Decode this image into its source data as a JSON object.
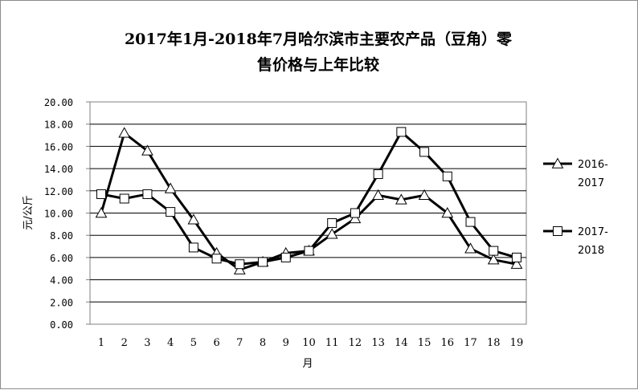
{
  "chart_data": {
    "type": "line",
    "title": "2017年1月-2018年7月哈尔滨市主要农产品（豆角）零",
    "title_line2": "售价格与上年比较",
    "xlabel": "月",
    "ylabel": "元/公斤",
    "x": [
      1,
      2,
      3,
      4,
      5,
      6,
      7,
      8,
      9,
      10,
      11,
      12,
      13,
      14,
      15,
      16,
      17,
      18,
      19
    ],
    "ylim": [
      0,
      20
    ],
    "yticks": [
      "0.00",
      "2.00",
      "4.00",
      "6.00",
      "8.00",
      "10.00",
      "12.00",
      "14.00",
      "16.00",
      "18.00",
      "20.00"
    ],
    "grid": true,
    "legend_position": "right",
    "series": [
      {
        "name": "2016-2017",
        "name_line1": "2016-",
        "name_line2": "2017",
        "marker": "triangle",
        "color": "#000000",
        "values": [
          10.0,
          17.2,
          15.6,
          12.2,
          9.4,
          6.4,
          4.9,
          5.6,
          6.4,
          6.6,
          8.1,
          9.5,
          11.6,
          11.2,
          11.6,
          10.0,
          6.8,
          5.8,
          5.4
        ]
      },
      {
        "name": "2017-2018",
        "name_line1": "2017-",
        "name_line2": "2018",
        "marker": "square",
        "color": "#000000",
        "values": [
          11.7,
          11.3,
          11.7,
          10.1,
          6.9,
          5.9,
          5.4,
          5.6,
          6.0,
          6.6,
          9.1,
          10.0,
          13.5,
          17.3,
          15.5,
          13.3,
          9.2,
          6.6,
          6.0
        ]
      }
    ]
  }
}
